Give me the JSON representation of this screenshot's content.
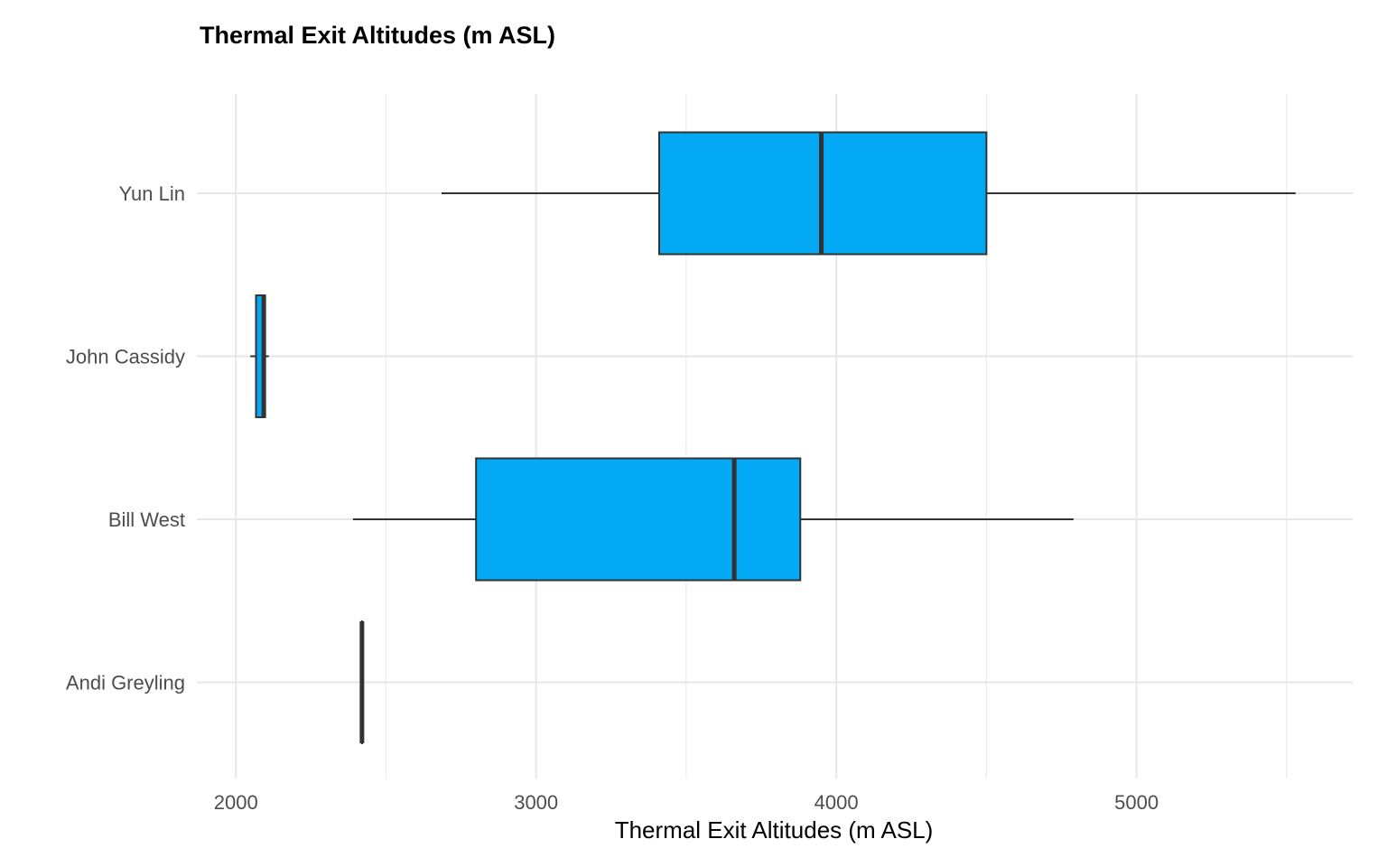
{
  "chart_data": {
    "type": "boxplot",
    "orientation": "horizontal",
    "title": "Thermal Exit Altitudes (m ASL)",
    "xlabel": "Thermal Exit Altitudes (m ASL)",
    "ylabel": "",
    "xlim": [
      1870,
      5720
    ],
    "x_ticks": [
      2000,
      3000,
      4000,
      5000
    ],
    "x_tick_labels": [
      "2000",
      "3000",
      "4000",
      "5000"
    ],
    "x_minor_ticks": [
      2500,
      3500,
      4500,
      5500
    ],
    "grid": true,
    "legend": "none",
    "box_color": "#03A9F4",
    "outline_color": "#333333",
    "categories": [
      "Andi Greyling",
      "Bill West",
      "John Cassidy",
      "Yun Lin"
    ],
    "boxes": [
      {
        "label": "Andi Greyling",
        "min": 2420,
        "q1": 2420,
        "median": 2420,
        "q3": 2420,
        "max": 2420
      },
      {
        "label": "Bill West",
        "min": 2390,
        "q1": 2800,
        "median": 3660,
        "q3": 3880,
        "max": 4790
      },
      {
        "label": "John Cassidy",
        "min": 2048,
        "q1": 2067,
        "median": 2093,
        "q3": 2097,
        "max": 2110
      },
      {
        "label": "Yun Lin",
        "min": 2685,
        "q1": 3410,
        "median": 3950,
        "q3": 4500,
        "max": 5530
      }
    ]
  }
}
